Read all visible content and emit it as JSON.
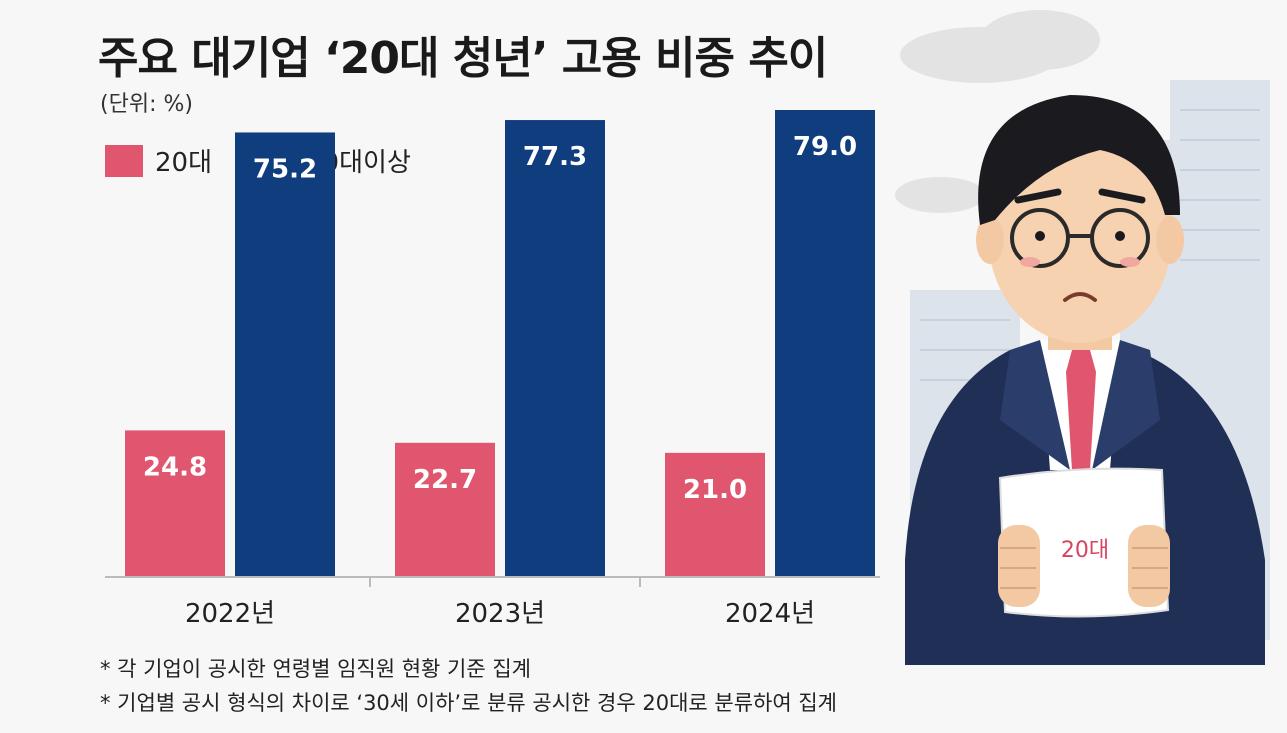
{
  "title": "주요 대기업 ‘20대 청년’ 고용 비중 추이",
  "unit": "(단위: %)",
  "notes": [
    "* 각 기업이 공시한 연령별 임직원 현황 기준 집계",
    "* 기업별 공시 형식의 차이로 ‘30세 이하’로 분류 공시한 경우 20대로 분류하여 집계"
  ],
  "illustration": {
    "paper_text": "20대"
  },
  "colors": {
    "series_20": "#e0566f",
    "series_30": "#0f3d7e",
    "background": "#f7f7f7"
  },
  "chart_data": {
    "type": "bar",
    "title": "주요 대기업 ‘20대 청년’ 고용 비중 추이",
    "categories": [
      "2022년",
      "2023년",
      "2024년"
    ],
    "series": [
      {
        "name": "20대",
        "values": [
          24.8,
          22.7,
          21.0
        ],
        "labels": [
          "24.8",
          "22.7",
          "21.0"
        ]
      },
      {
        "name": "30대이상",
        "values": [
          75.2,
          77.3,
          79.0
        ],
        "labels": [
          "75.2",
          "77.3",
          "79.0"
        ]
      }
    ],
    "ylim": [
      0,
      79.0
    ],
    "grid": false,
    "legend": "top-left"
  }
}
